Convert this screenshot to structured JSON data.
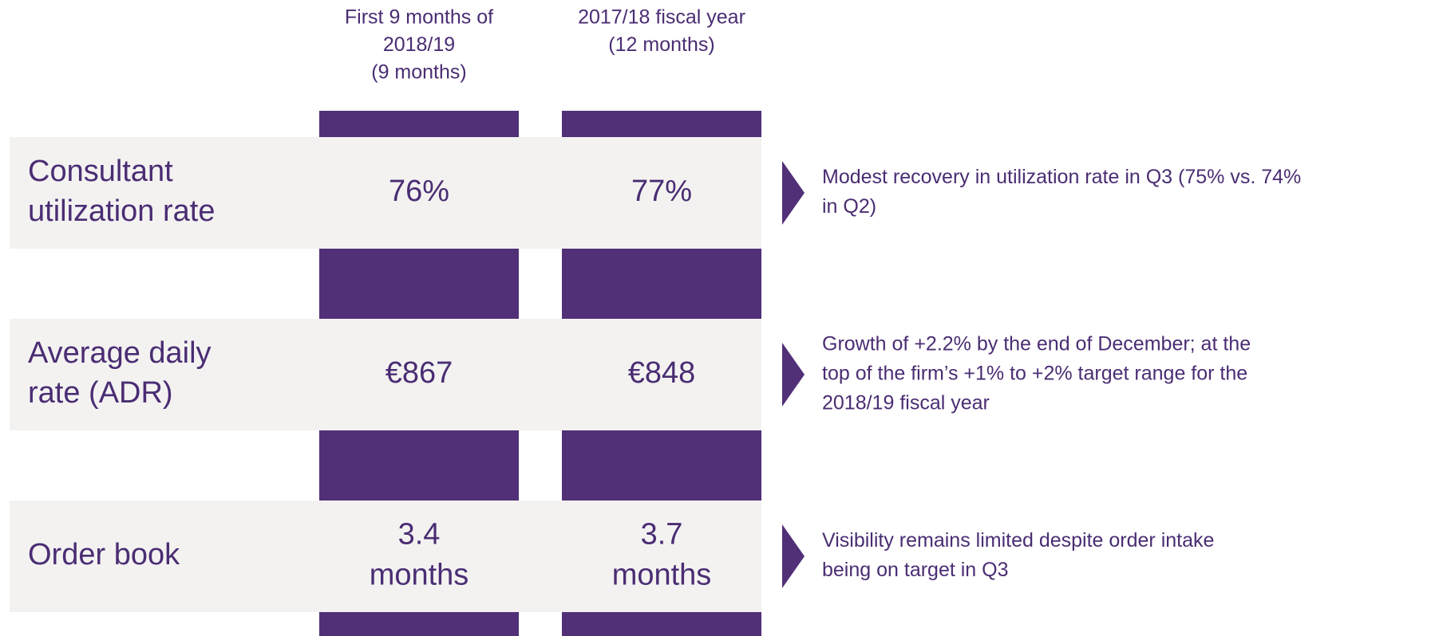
{
  "columns": [
    {
      "lines": [
        "First 9 months of",
        "2018/19",
        "(9 months)"
      ]
    },
    {
      "lines": [
        "2017/18 fiscal year",
        "(12 months)"
      ]
    }
  ],
  "rows": [
    {
      "label": [
        "Consultant",
        "utilization rate"
      ],
      "values": [
        [
          "76%"
        ],
        [
          "77%"
        ]
      ],
      "comment": [
        "Modest recovery in utilization rate in Q3 (75% vs. 74%",
        "in Q2)"
      ]
    },
    {
      "label": [
        "Average daily",
        "rate (ADR)"
      ],
      "values": [
        [
          "€867"
        ],
        [
          "€848"
        ]
      ],
      "comment": [
        "Growth of +2.2% by the end of December; at the",
        "top of the firm’s +1% to +2% target range for the",
        "2018/19 fiscal year"
      ]
    },
    {
      "label": [
        "Order book"
      ],
      "values": [
        [
          "3.4",
          "months"
        ],
        [
          "3.7",
          "months"
        ]
      ],
      "comment": [
        "Visibility remains limited despite order intake",
        "being on target in Q3"
      ]
    }
  ]
}
